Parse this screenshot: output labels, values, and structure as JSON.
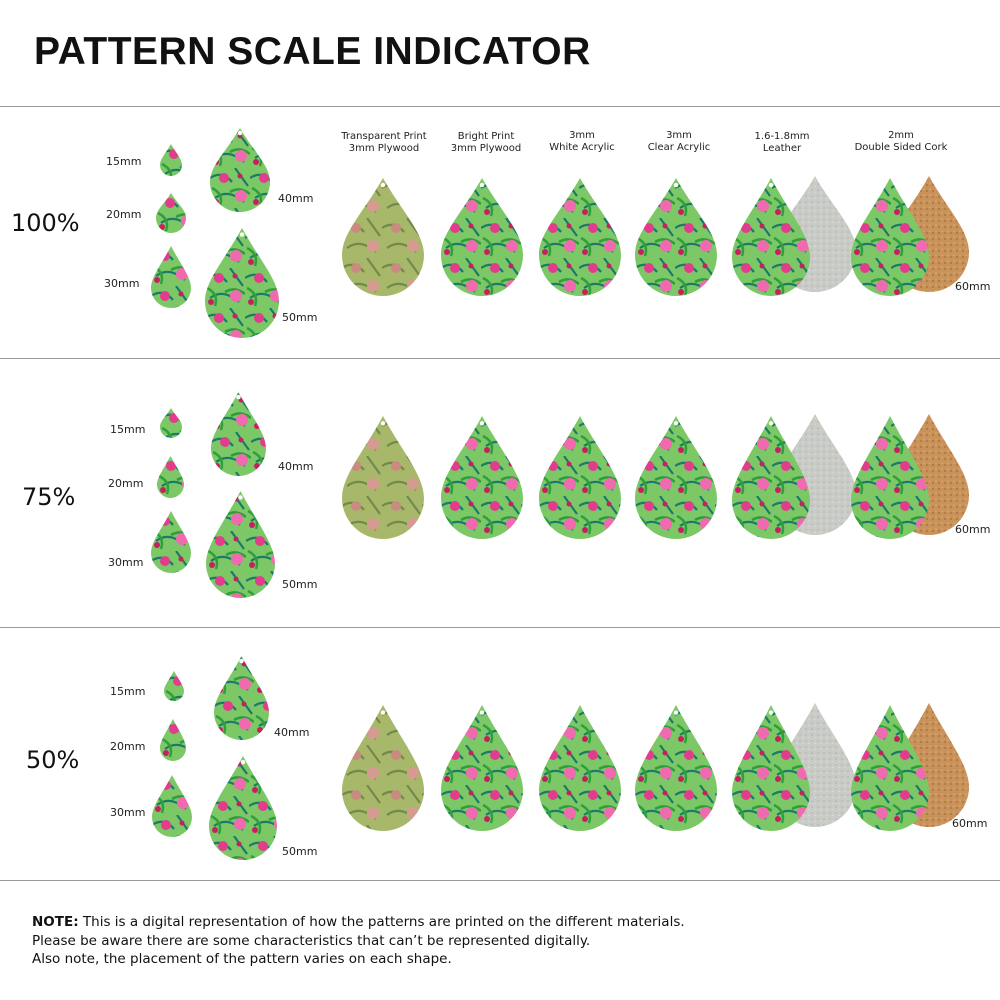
{
  "title": "PATTERN SCALE INDICATOR",
  "headers": [
    "Transparent Print\n3mm Plywood",
    "Bright Print\n3mm Plywood",
    "3mm\nWhite Acrylic",
    "3mm\nClear Acrylic",
    "1.6-1.8mm\nLeather",
    "2mm\nDouble Sided Cork"
  ],
  "rows": [
    {
      "percent": "100%"
    },
    {
      "percent": "75%"
    },
    {
      "percent": "50%"
    }
  ],
  "size_labels": {
    "s15": "15mm",
    "s20": "20mm",
    "s30": "30mm",
    "s40": "40mm",
    "s50": "50mm",
    "s60": "60mm"
  },
  "materials": [
    "transparent-plywood",
    "bright-plywood",
    "white-acrylic",
    "clear-acrylic",
    "leather",
    "cork"
  ],
  "colors": {
    "green": "#3aa845",
    "pink": "#e23c8c",
    "teal": "#1c7a6a",
    "light_green": "#9fd36a",
    "leather": "#c9ccc6",
    "cork": "#c9925a"
  },
  "note": {
    "lead": "NOTE:",
    "line1": " This is a digital representation of how the patterns are printed on the different materials.",
    "line2": "Please be aware there are some characteristics that can’t be represented digitally.",
    "line3": "Also note, the placement of the pattern varies on each shape."
  }
}
